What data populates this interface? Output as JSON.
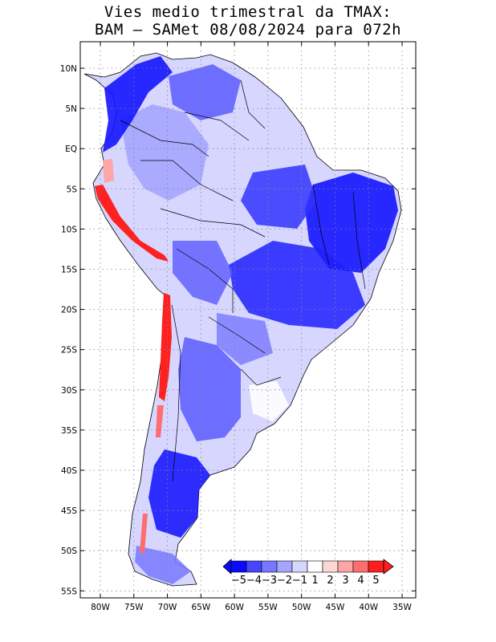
{
  "title": {
    "line1": "Vies medio trimestral da TMAX:",
    "line2": "BAM — SAMet 08/08/2024  para 072h"
  },
  "axes": {
    "lat_labels": [
      "10N",
      "5N",
      "EQ",
      "5S",
      "10S",
      "15S",
      "20S",
      "25S",
      "30S",
      "35S",
      "40S",
      "45S",
      "50S",
      "55S"
    ],
    "lon_labels": [
      "80W",
      "75W",
      "70W",
      "65W",
      "60W",
      "55W",
      "50W",
      "45W",
      "40W",
      "35W"
    ]
  },
  "colorbar": {
    "labels": [
      "−5",
      "−4",
      "−3",
      "−2",
      "−1",
      "1",
      "2",
      "3",
      "4",
      "5"
    ],
    "colors": [
      "#0a0aff",
      "#4646ff",
      "#7878ff",
      "#a5a5ff",
      "#d6d6ff",
      "#ffffff",
      "#ffd6d6",
      "#ffa5a5",
      "#ff6e6e",
      "#ff1e1e"
    ]
  },
  "colors": {
    "strong_cold": "#1414ff",
    "moderate_cold": "#5a5aff",
    "light_cold": "#a5a5ff",
    "faint_cold": "#d6d6ff",
    "warm": "#ff2020"
  }
}
